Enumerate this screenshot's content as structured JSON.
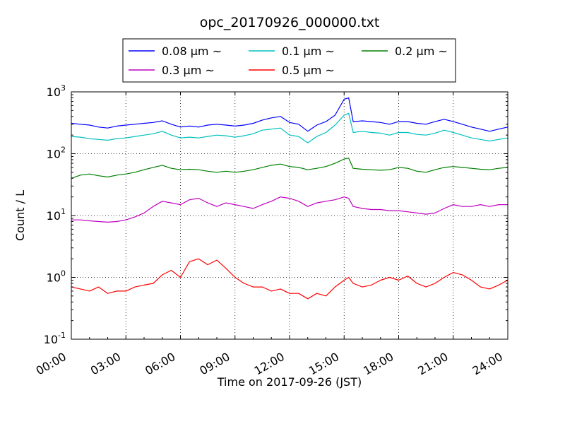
{
  "chart_data": {
    "type": "line",
    "title": "opc_20170926_000000.txt",
    "xlabel": "Time on 2017-09-26 (JST)",
    "ylabel": "Count / L",
    "x_ticks": [
      "00:00",
      "03:00",
      "06:00",
      "09:00",
      "12:00",
      "15:00",
      "18:00",
      "21:00",
      "24:00"
    ],
    "y_ticks": [
      {
        "value": 0.1,
        "base": "10",
        "exp": "-1"
      },
      {
        "value": 1,
        "base": "10",
        "exp": "0"
      },
      {
        "value": 10,
        "base": "10",
        "exp": "1"
      },
      {
        "value": 100,
        "base": "10",
        "exp": "2"
      },
      {
        "value": 1000,
        "base": "10",
        "exp": "3"
      }
    ],
    "xlim": [
      0,
      24
    ],
    "ylim": [
      0.1,
      1000
    ],
    "yscale": "log",
    "grid": true,
    "legend_position": "top-center, above plot",
    "series": [
      {
        "name": "0.08 μm ~",
        "color": "#0000ff",
        "x": [
          0,
          0.5,
          1,
          1.5,
          2,
          2.5,
          3,
          3.5,
          4,
          4.5,
          5,
          5.5,
          6,
          6.5,
          7,
          7.5,
          8,
          8.5,
          9,
          9.5,
          10,
          10.5,
          11,
          11.5,
          12,
          12.5,
          13,
          13.5,
          14,
          14.5,
          15,
          15.25,
          15.5,
          16,
          16.5,
          17,
          17.5,
          18,
          18.5,
          19,
          19.5,
          20,
          20.5,
          21,
          21.5,
          22,
          22.5,
          23,
          23.5,
          24
        ],
        "y": [
          310,
          300,
          290,
          270,
          260,
          280,
          290,
          300,
          310,
          320,
          340,
          300,
          270,
          280,
          270,
          290,
          300,
          290,
          280,
          290,
          310,
          350,
          380,
          400,
          320,
          300,
          230,
          290,
          330,
          420,
          760,
          800,
          330,
          340,
          330,
          320,
          300,
          330,
          330,
          310,
          300,
          330,
          360,
          330,
          300,
          270,
          250,
          230,
          250,
          270
        ]
      },
      {
        "name": "0.1 μm ~",
        "color": "#00bfbf",
        "x": [
          0,
          0.5,
          1,
          1.5,
          2,
          2.5,
          3,
          3.5,
          4,
          4.5,
          5,
          5.5,
          6,
          6.5,
          7,
          7.5,
          8,
          8.5,
          9,
          9.5,
          10,
          10.5,
          11,
          11.5,
          12,
          12.5,
          13,
          13.5,
          14,
          14.5,
          15,
          15.25,
          15.5,
          16,
          16.5,
          17,
          17.5,
          18,
          18.5,
          19,
          19.5,
          20,
          20.5,
          21,
          21.5,
          22,
          22.5,
          23,
          23.5,
          24
        ],
        "y": [
          190,
          185,
          175,
          170,
          165,
          175,
          180,
          190,
          200,
          210,
          230,
          200,
          180,
          185,
          180,
          190,
          200,
          195,
          185,
          195,
          210,
          240,
          250,
          260,
          200,
          190,
          150,
          190,
          220,
          290,
          420,
          450,
          220,
          230,
          220,
          215,
          200,
          220,
          220,
          205,
          200,
          215,
          240,
          220,
          200,
          180,
          170,
          160,
          170,
          180
        ]
      },
      {
        "name": "0.2 μm ~",
        "color": "#008000",
        "x": [
          0,
          0.5,
          1,
          1.5,
          2,
          2.5,
          3,
          3.5,
          4,
          4.5,
          5,
          5.5,
          6,
          6.5,
          7,
          7.5,
          8,
          8.5,
          9,
          9.5,
          10,
          10.5,
          11,
          11.5,
          12,
          12.5,
          13,
          13.5,
          14,
          14.5,
          15,
          15.25,
          15.5,
          16,
          16.5,
          17,
          17.5,
          18,
          18.5,
          19,
          19.5,
          20,
          20.5,
          21,
          21.5,
          22,
          22.5,
          23,
          23.5,
          24
        ],
        "y": [
          40,
          45,
          47,
          44,
          42,
          45,
          47,
          50,
          55,
          60,
          65,
          58,
          55,
          56,
          55,
          52,
          50,
          52,
          50,
          52,
          55,
          60,
          65,
          68,
          62,
          60,
          55,
          58,
          62,
          70,
          82,
          85,
          58,
          56,
          55,
          54,
          55,
          60,
          58,
          52,
          50,
          55,
          60,
          62,
          60,
          58,
          56,
          55,
          58,
          60
        ]
      },
      {
        "name": "0.3 μm ~",
        "color": "#bf00bf",
        "x": [
          0,
          0.5,
          1,
          1.5,
          2,
          2.5,
          3,
          3.5,
          4,
          4.5,
          5,
          5.5,
          6,
          6.5,
          7,
          7.5,
          8,
          8.5,
          9,
          9.5,
          10,
          10.5,
          11,
          11.5,
          12,
          12.5,
          13,
          13.5,
          14,
          14.5,
          15,
          15.25,
          15.5,
          16,
          16.5,
          17,
          17.5,
          18,
          18.5,
          19,
          19.5,
          20,
          20.5,
          21,
          21.5,
          22,
          22.5,
          23,
          23.5,
          24
        ],
        "y": [
          8.5,
          8.5,
          8.2,
          8,
          7.8,
          8,
          8.5,
          9.5,
          11,
          14,
          17,
          16,
          15,
          18,
          19,
          16,
          14,
          16,
          15,
          14,
          13,
          15,
          17,
          20,
          19,
          17,
          14,
          16,
          17,
          18,
          20,
          19,
          14,
          13,
          12.5,
          12.5,
          12,
          12,
          11.5,
          11,
          10.5,
          11,
          13,
          15,
          14,
          14,
          15,
          14,
          15,
          15
        ]
      },
      {
        "name": "0.5 μm ~",
        "color": "#ff0000",
        "x": [
          0,
          0.5,
          1,
          1.5,
          2,
          2.5,
          3,
          3.5,
          4,
          4.5,
          5,
          5.5,
          6,
          6.5,
          7,
          7.5,
          8,
          8.5,
          9,
          9.5,
          10,
          10.5,
          11,
          11.5,
          12,
          12.5,
          13,
          13.5,
          14,
          14.5,
          15,
          15.25,
          15.5,
          16,
          16.5,
          17,
          17.5,
          18,
          18.5,
          19,
          19.5,
          20,
          20.5,
          21,
          21.5,
          22,
          22.5,
          23,
          23.5,
          24
        ],
        "y": [
          0.7,
          0.65,
          0.6,
          0.7,
          0.55,
          0.6,
          0.6,
          0.7,
          0.75,
          0.8,
          1.1,
          1.3,
          1.0,
          1.8,
          2.0,
          1.6,
          1.9,
          1.4,
          1.0,
          0.8,
          0.7,
          0.7,
          0.6,
          0.65,
          0.55,
          0.55,
          0.45,
          0.55,
          0.5,
          0.7,
          0.9,
          1.0,
          0.8,
          0.7,
          0.75,
          0.9,
          1.0,
          0.9,
          1.05,
          0.8,
          0.7,
          0.8,
          1.0,
          1.2,
          1.1,
          0.9,
          0.7,
          0.65,
          0.75,
          0.9
        ]
      }
    ]
  }
}
